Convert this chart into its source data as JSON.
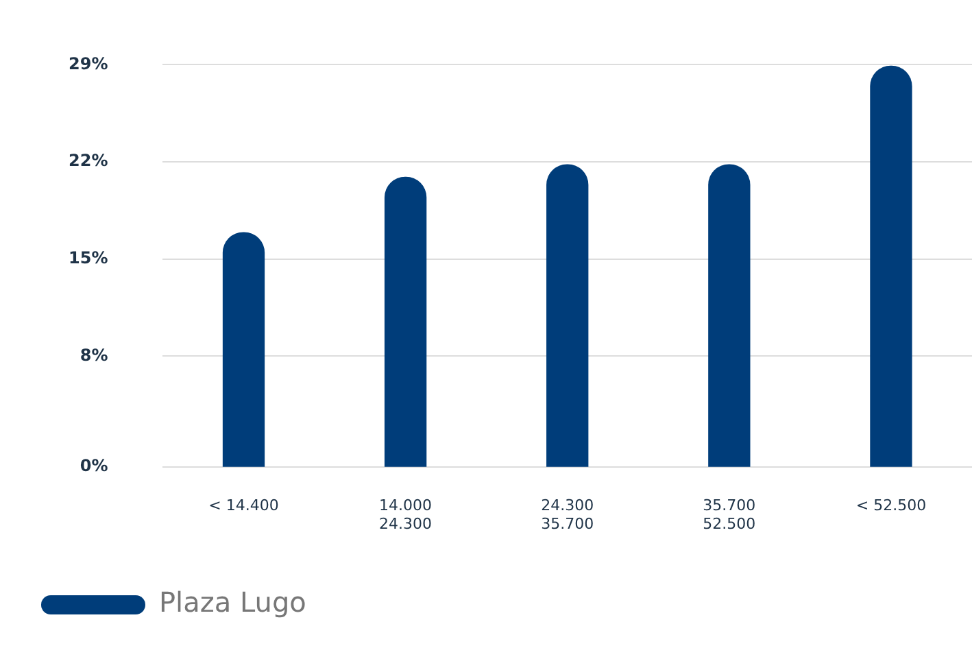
{
  "chart_data": {
    "type": "bar",
    "categories": [
      "< 14.400",
      "14.000\n24.300",
      "24.300\n35.700",
      "35.700\n52.500",
      "< 52.500"
    ],
    "series": [
      {
        "name": "Plaza Lugo",
        "color": "#003d7a",
        "values": [
          16.9,
          20.9,
          21.8,
          21.8,
          28.9
        ]
      }
    ],
    "ylim": [
      0,
      29
    ],
    "yticks": [
      {
        "value": 0,
        "label": "0%"
      },
      {
        "value": 8,
        "label": "8%"
      },
      {
        "value": 15,
        "label": "15%"
      },
      {
        "value": 22,
        "label": "22%"
      },
      {
        "value": 29,
        "label": "29%"
      }
    ],
    "grid": "y",
    "legend": "bottom left"
  }
}
